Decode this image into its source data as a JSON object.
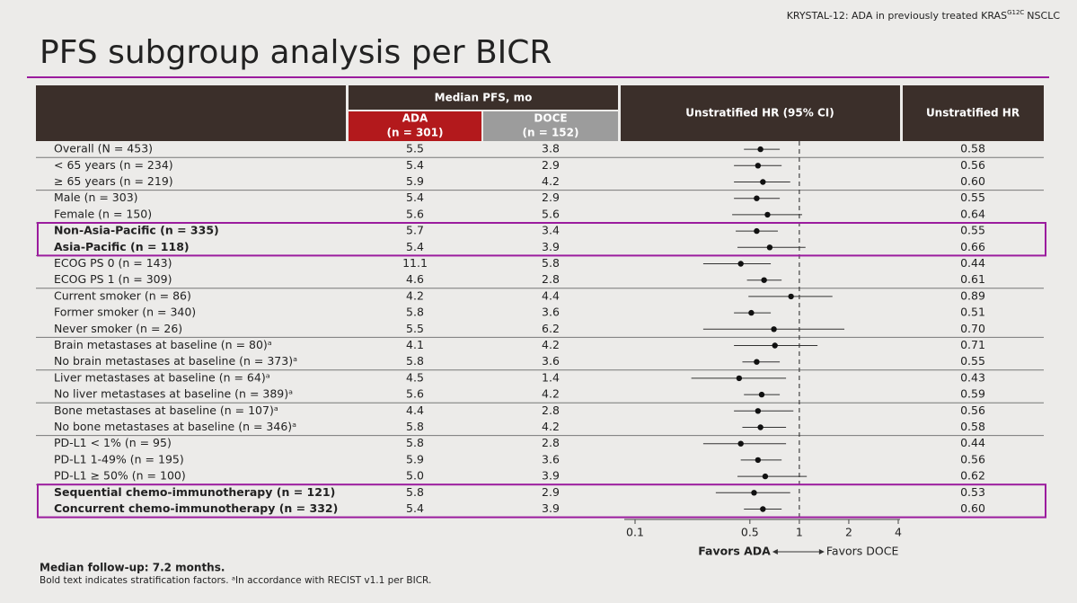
{
  "chart_data": {
    "type": "forest",
    "header": {
      "text": "KRYSTAL-12: ADA in previously treated KRAS",
      "sup": "G12C",
      "suffix": "NSCLC"
    },
    "title": "PFS subgroup analysis per BICR",
    "columns": {
      "median": "Median PFS, mo",
      "ada": "ADA",
      "ada_n": "(n = 301)",
      "doce": "DOCE",
      "doce_n": "(n = 152)",
      "plot": "Unstratified HR (95% CI)",
      "hr": "Unstratified HR"
    },
    "colors": {
      "ada": "#b3191c",
      "doce": "#9c9c9c",
      "header": "#3b2f2a",
      "highlight": "#9b1c9e",
      "point": "#111111"
    },
    "categories": [
      "Overall (N = 453)",
      "< 65 years (n = 234)",
      "≥ 65 years (n = 219)",
      "Male (n = 303)",
      "Female (n = 150)",
      "Non-Asia-Pacific (n = 335)",
      "Asia-Pacific (n = 118)",
      "ECOG PS 0 (n = 143)",
      "ECOG PS 1 (n = 309)",
      "Current smoker (n = 86)",
      "Former smoker (n = 340)",
      "Never smoker (n = 26)",
      "Brain metastases at baseline (n = 80)ᵃ",
      "No brain metastases at baseline (n = 373)ᵃ",
      "Liver metastases at baseline (n = 64)ᵃ",
      "No liver metastases at baseline (n = 389)ᵃ",
      "Bone metastases at baseline (n = 107)ᵃ",
      "No bone metastases at baseline (n = 346)ᵃ",
      "PD-L1 < 1% (n = 95)",
      "PD-L1 1-49% (n = 195)",
      "PD-L1  ≥ 50% (n = 100)",
      "Sequential chemo-immunotherapy (n = 121)",
      "Concurrent chemo-immunotherapy (n = 332)"
    ],
    "bold": [
      false,
      false,
      false,
      false,
      false,
      true,
      true,
      false,
      false,
      false,
      false,
      false,
      false,
      false,
      false,
      false,
      false,
      false,
      false,
      false,
      false,
      true,
      true
    ],
    "ada": [
      "5.5",
      "5.4",
      "5.9",
      "5.4",
      "5.6",
      "5.7",
      "5.4",
      "11.1",
      "4.6",
      "4.2",
      "5.8",
      "5.5",
      "4.1",
      "5.8",
      "4.5",
      "5.6",
      "4.4",
      "5.8",
      "5.8",
      "5.9",
      "5.0",
      "5.8",
      "5.4"
    ],
    "doce": [
      "3.8",
      "2.9",
      "4.2",
      "2.9",
      "5.6",
      "3.4",
      "3.9",
      "5.8",
      "2.8",
      "4.4",
      "3.6",
      "6.2",
      "4.2",
      "3.6",
      "1.4",
      "4.2",
      "2.8",
      "4.2",
      "2.8",
      "3.6",
      "3.9",
      "2.9",
      "3.9"
    ],
    "hr": [
      0.58,
      0.56,
      0.6,
      0.55,
      0.64,
      0.55,
      0.66,
      0.44,
      0.61,
      0.89,
      0.51,
      0.7,
      0.71,
      0.55,
      0.43,
      0.59,
      0.56,
      0.58,
      0.44,
      0.56,
      0.62,
      0.53,
      0.6
    ],
    "value_labels": [
      "0.58",
      "0.56",
      "0.60",
      "0.55",
      "0.64",
      "0.55",
      "0.66",
      "0.44",
      "0.61",
      "0.89",
      "0.51",
      "0.70",
      "0.71",
      "0.55",
      "0.43",
      "0.59",
      "0.56",
      "0.58",
      "0.44",
      "0.56",
      "0.62",
      "0.53",
      "0.60"
    ],
    "ci_lower": [
      0.46,
      0.4,
      0.4,
      0.4,
      0.39,
      0.41,
      0.42,
      0.26,
      0.48,
      0.49,
      0.4,
      0.26,
      0.4,
      0.45,
      0.22,
      0.46,
      0.4,
      0.45,
      0.26,
      0.44,
      0.42,
      0.31,
      0.46
    ],
    "ci_upper": [
      0.76,
      0.78,
      0.88,
      0.76,
      1.04,
      0.74,
      1.09,
      0.67,
      0.78,
      1.59,
      0.67,
      1.88,
      1.29,
      0.76,
      0.83,
      0.76,
      0.92,
      0.83,
      0.83,
      0.78,
      1.11,
      0.88,
      0.78
    ],
    "xscale": "log",
    "xlim": [
      0.1,
      4
    ],
    "xticks": [
      0.1,
      0.5,
      1,
      2,
      4
    ],
    "refline": 1,
    "favors_left": "Favors ADA",
    "favors_right": "Favors DOCE",
    "footnotes": [
      "Median follow-up: 7.2 months.",
      "Bold text indicates stratification factors. ᵃIn accordance with RECIST v1.1 per BICR."
    ]
  }
}
